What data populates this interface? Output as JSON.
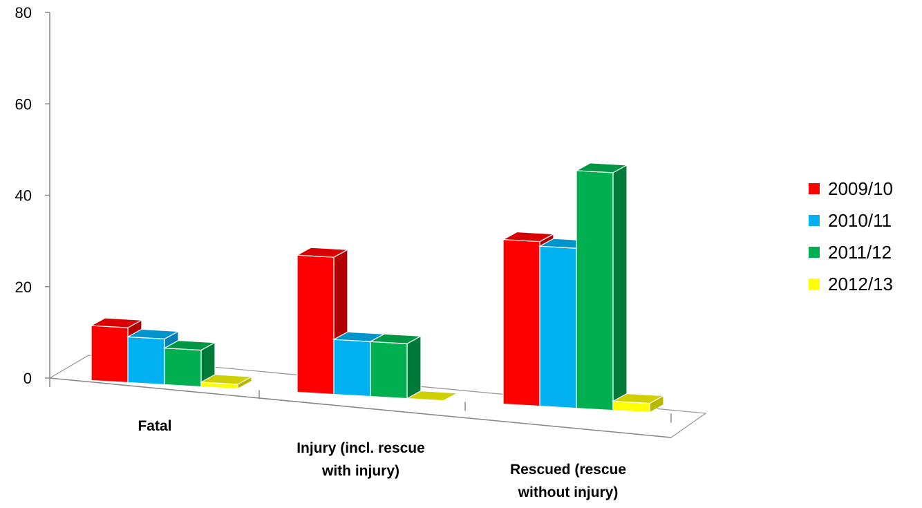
{
  "chart_data": {
    "type": "bar",
    "categories": [
      "Fatal",
      "Injury (incl. rescue with injury)",
      "Rescued (rescue without injury)"
    ],
    "category_lines": [
      [
        "Fatal"
      ],
      [
        "Injury (incl. rescue",
        "with injury)"
      ],
      [
        "Rescued (rescue",
        "without injury)"
      ]
    ],
    "series": [
      {
        "name": "2009/10",
        "values": [
          12,
          30,
          36
        ],
        "color": "#ff0000",
        "side": "#b00000",
        "top": "#d80000"
      },
      {
        "name": "2010/11",
        "values": [
          10,
          12,
          35
        ],
        "color": "#00b0f0",
        "side": "#0080b0",
        "top": "#0094cc"
      },
      {
        "name": "2011/12",
        "values": [
          8,
          12,
          52
        ],
        "color": "#00b050",
        "side": "#007a38",
        "top": "#009644"
      },
      {
        "name": "2012/13",
        "values": [
          1,
          0,
          2
        ],
        "color": "#ffff00",
        "side": "#b8b800",
        "top": "#d0d000"
      }
    ],
    "yticks": [
      "0",
      "20",
      "40",
      "60",
      "80"
    ],
    "ylim": [
      0,
      80
    ],
    "grid": false,
    "legend_position": "right"
  }
}
